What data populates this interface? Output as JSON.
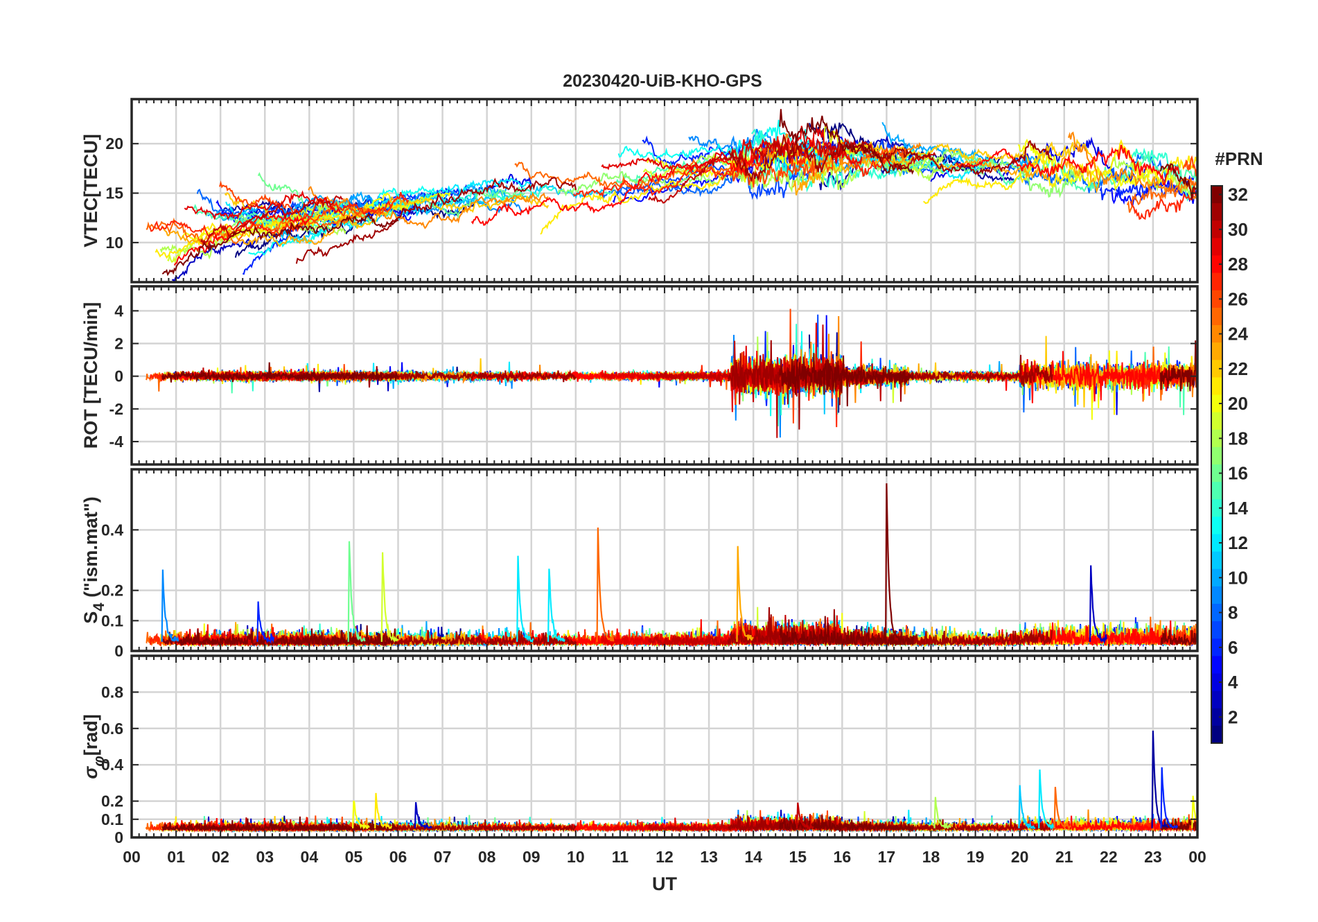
{
  "title": "20230420-UiB-KHO-GPS",
  "chart_data": {
    "type": "line",
    "title": "20230420-UiB-KHO-GPS",
    "xlabel": "UT",
    "xlim": [
      0,
      24
    ],
    "x_tick_labels": [
      "00",
      "01",
      "02",
      "03",
      "04",
      "05",
      "06",
      "07",
      "08",
      "09",
      "10",
      "11",
      "12",
      "13",
      "14",
      "15",
      "16",
      "17",
      "18",
      "19",
      "20",
      "21",
      "22",
      "23",
      "00"
    ],
    "series_colour_key": "#PRN",
    "panels": [
      {
        "id": "vtec",
        "ylabel": "VTEC[TECU]",
        "ylim": [
          6,
          24.5
        ],
        "yticks": [
          10,
          15,
          20
        ],
        "ytick_labels": [
          "10",
          "15",
          "20"
        ],
        "kind": "vtec"
      },
      {
        "id": "rot",
        "ylabel": "ROT [TECU/min]",
        "ylim": [
          -5.4,
          5.5
        ],
        "yticks": [
          -4,
          -2,
          0,
          2,
          4
        ],
        "ytick_labels": [
          "-4",
          "-2",
          "0",
          "2",
          "4"
        ],
        "kind": "rot"
      },
      {
        "id": "s4",
        "ylabel_main": "S",
        "ylabel_sub": "4",
        "ylabel_rest": " (\"ism.mat\")",
        "ylim": [
          0,
          0.6
        ],
        "yticks": [
          0,
          0.1,
          0.2,
          0.4
        ],
        "ytick_labels": [
          "0",
          "0.1",
          "0.2",
          "0.4"
        ],
        "kind": "s4",
        "peaks": [
          {
            "t": 0.7,
            "v": 0.26,
            "prn": 9
          },
          {
            "t": 2.85,
            "v": 0.15,
            "prn": 6
          },
          {
            "t": 4.9,
            "v": 0.36,
            "prn": 16
          },
          {
            "t": 5.65,
            "v": 0.32,
            "prn": 19
          },
          {
            "t": 8.7,
            "v": 0.3,
            "prn": 12
          },
          {
            "t": 9.4,
            "v": 0.27,
            "prn": 12
          },
          {
            "t": 10.5,
            "v": 0.4,
            "prn": 25
          },
          {
            "t": 13.65,
            "v": 0.34,
            "prn": 23
          },
          {
            "t": 17.0,
            "v": 0.55,
            "prn": 32
          },
          {
            "t": 21.6,
            "v": 0.27,
            "prn": 3
          }
        ]
      },
      {
        "id": "sigma",
        "ylabel_main": "σ",
        "ylabel_sub": "φ",
        "ylabel_rest": "[rad]",
        "ylim": [
          0,
          1.0
        ],
        "yticks": [
          0,
          0.1,
          0.2,
          0.4,
          0.6,
          0.8
        ],
        "ytick_labels": [
          "0",
          "0.1",
          "0.2",
          "0.4",
          "0.6",
          "0.8"
        ],
        "kind": "sigma",
        "peaks": [
          {
            "t": 5.0,
            "v": 0.2,
            "prn": 20
          },
          {
            "t": 5.5,
            "v": 0.23,
            "prn": 21
          },
          {
            "t": 6.4,
            "v": 0.18,
            "prn": 3
          },
          {
            "t": 15.0,
            "v": 0.19,
            "prn": 30
          },
          {
            "t": 18.1,
            "v": 0.21,
            "prn": 18
          },
          {
            "t": 20.0,
            "v": 0.28,
            "prn": 11
          },
          {
            "t": 20.45,
            "v": 0.36,
            "prn": 12
          },
          {
            "t": 20.8,
            "v": 0.27,
            "prn": 25
          },
          {
            "t": 23.0,
            "v": 0.58,
            "prn": 2
          },
          {
            "t": 23.2,
            "v": 0.37,
            "prn": 6
          },
          {
            "t": 23.9,
            "v": 0.22,
            "prn": 20
          }
        ]
      }
    ],
    "colorbar": {
      "title": "#PRN",
      "range": [
        1,
        32
      ],
      "ticks": [
        2,
        4,
        6,
        8,
        10,
        12,
        14,
        16,
        18,
        20,
        22,
        24,
        26,
        28,
        30,
        32
      ],
      "tick_labels": [
        "2",
        "4",
        "6",
        "8",
        "10",
        "12",
        "14",
        "16",
        "18",
        "20",
        "22",
        "24",
        "26",
        "28",
        "30",
        "32"
      ],
      "colormap": "jet"
    }
  }
}
